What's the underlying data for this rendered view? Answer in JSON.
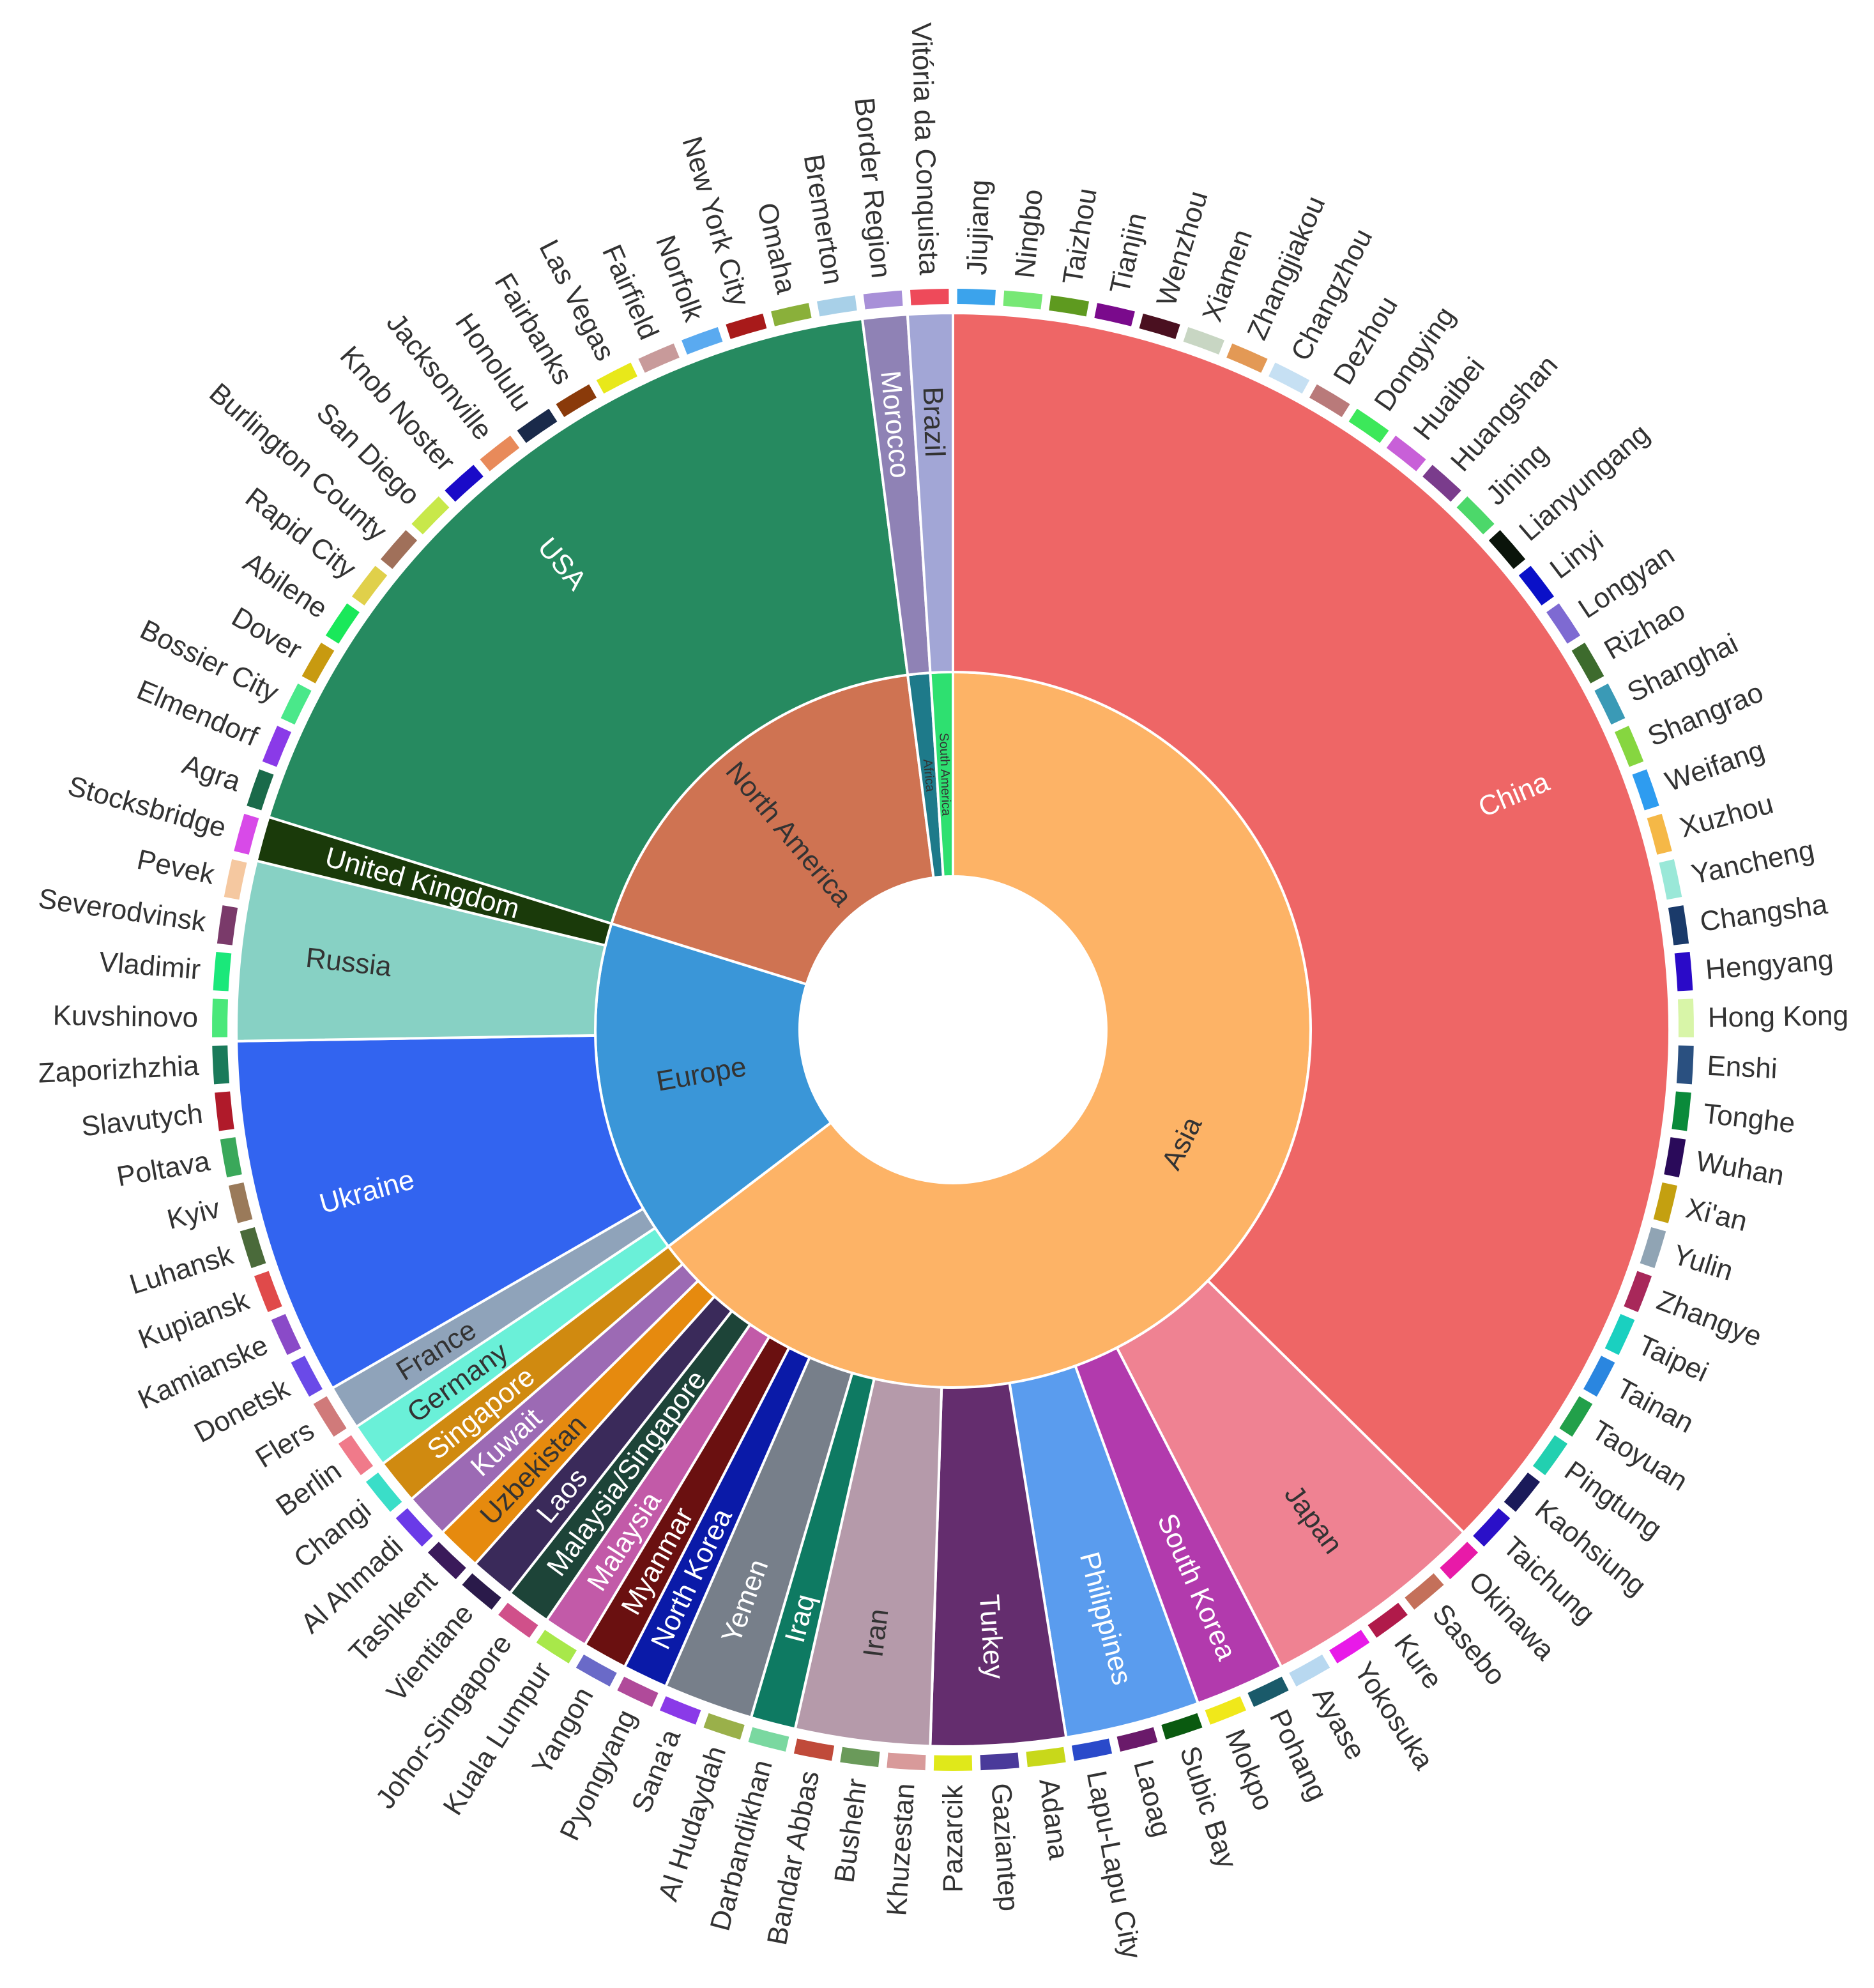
{
  "chart_data": {
    "type": "sunburst",
    "title": "",
    "rings": [
      "continent",
      "country",
      "city"
    ],
    "children": [
      {
        "name": "Asia",
        "color": "#FDB366",
        "children": [
          {
            "name": "China",
            "color": "#EE6666",
            "children": [
              {
                "name": "Jiujiang",
                "color": "#3BA3EC"
              },
              {
                "name": "Ningbo",
                "color": "#77E875"
              },
              {
                "name": "Taizhou",
                "color": "#5E9A1F"
              },
              {
                "name": "Tianjin",
                "color": "#7A0A8C"
              },
              {
                "name": "Wenzhou",
                "color": "#4A1020"
              },
              {
                "name": "Xiamen",
                "color": "#C8D6C3"
              },
              {
                "name": "Zhangjiakou",
                "color": "#E39955"
              },
              {
                "name": "Changzhou",
                "color": "#C6E0F3"
              },
              {
                "name": "Dezhou",
                "color": "#B97A7A"
              },
              {
                "name": "Dongying",
                "color": "#3CE85A"
              },
              {
                "name": "Huaibei",
                "color": "#C860D8"
              },
              {
                "name": "Huangshan",
                "color": "#7A3C8C"
              },
              {
                "name": "Jining",
                "color": "#4CD86A"
              },
              {
                "name": "Lianyungang",
                "color": "#0A140A"
              },
              {
                "name": "Linyi",
                "color": "#0A10C8"
              },
              {
                "name": "Longyan",
                "color": "#7E6AD2"
              },
              {
                "name": "Rizhao",
                "color": "#3D6B2D"
              },
              {
                "name": "Shanghai",
                "color": "#3A9AB6"
              },
              {
                "name": "Shangrao",
                "color": "#86D640"
              },
              {
                "name": "Weifang",
                "color": "#2E9CF0"
              },
              {
                "name": "Xuzhou",
                "color": "#F5B847"
              },
              {
                "name": "Yancheng",
                "color": "#9AE8D8"
              },
              {
                "name": "Changsha",
                "color": "#1A3A6A"
              },
              {
                "name": "Hengyang",
                "color": "#2A0AC8"
              },
              {
                "name": "Hong Kong",
                "color": "#D8F5A8"
              },
              {
                "name": "Enshi",
                "color": "#2A5080"
              },
              {
                "name": "Tonghe",
                "color": "#0A8A3A"
              },
              {
                "name": "Wuhan",
                "color": "#2A0A5A"
              },
              {
                "name": "Xi'an",
                "color": "#C4A010"
              },
              {
                "name": "Yulin",
                "color": "#90A4B4"
              },
              {
                "name": "Zhangye",
                "color": "#A8285A"
              },
              {
                "name": "Taipei",
                "color": "#1AD0C0"
              },
              {
                "name": "Tainan",
                "color": "#2A86E0"
              },
              {
                "name": "Taoyuan",
                "color": "#22A04A"
              },
              {
                "name": "Pingtung",
                "color": "#22D0B0"
              },
              {
                "name": "Kaohsiung",
                "color": "#1A1A5A"
              },
              {
                "name": "Taichung",
                "color": "#2A10C8"
              }
            ]
          },
          {
            "name": "Japan",
            "color": "#EF8292",
            "children": [
              {
                "name": "Okinawa",
                "color": "#E81AA8"
              },
              {
                "name": "Sasebo",
                "color": "#C4705A"
              },
              {
                "name": "Kure",
                "color": "#B01A4A"
              },
              {
                "name": "Yokosuka",
                "color": "#E81AE8"
              },
              {
                "name": "Ayase",
                "color": "#B8D8F0"
              }
            ]
          },
          {
            "name": "South Korea",
            "color": "#B23AAD",
            "children": [
              {
                "name": "Pohang",
                "color": "#1A5A6A"
              },
              {
                "name": "Mokpo",
                "color": "#F0E81A"
              }
            ]
          },
          {
            "name": "Philippines",
            "color": "#5A9CEE",
            "children": [
              {
                "name": "Subic Bay",
                "color": "#0A5A10"
              },
              {
                "name": "Laoag",
                "color": "#6A1A6A"
              },
              {
                "name": "Lapu-Lapu City",
                "color": "#2A4ACA"
              }
            ]
          },
          {
            "name": "Turkey",
            "color": "#642D6E",
            "children": [
              {
                "name": "Adana",
                "color": "#C8D81A"
              },
              {
                "name": "Gaziantep",
                "color": "#4A3A9A"
              },
              {
                "name": "Pazarcik",
                "color": "#E0E81A"
              }
            ]
          },
          {
            "name": "Iran",
            "color": "#B59AAA",
            "children": [
              {
                "name": "Khuzestan",
                "color": "#D89A9A"
              },
              {
                "name": "Bushehr",
                "color": "#6A9A5A"
              },
              {
                "name": "Bandar Abbas",
                "color": "#C04A3A"
              }
            ]
          },
          {
            "name": "Iraq",
            "color": "#0E7A62",
            "children": [
              {
                "name": "Darbandikhan",
                "color": "#7AD8A0"
              }
            ]
          },
          {
            "name": "Yemen",
            "color": "#777F8A",
            "children": [
              {
                "name": "Al Hudaydah",
                "color": "#9AB04A"
              },
              {
                "name": "Sana'a",
                "color": "#8A3AE8"
              }
            ]
          },
          {
            "name": "North Korea",
            "color": "#0A1AA8",
            "children": [
              {
                "name": "Pyongyang",
                "color": "#B04A9A"
              }
            ]
          },
          {
            "name": "Myanmar",
            "color": "#6A1010",
            "children": [
              {
                "name": "Yangon",
                "color": "#6A6AC8"
              }
            ]
          },
          {
            "name": "Malaysia",
            "color": "#C25AA8",
            "children": [
              {
                "name": "Kuala Lumpur",
                "color": "#A8E84A"
              }
            ]
          },
          {
            "name": "Malaysia/Singapore",
            "color": "#1D4438",
            "children": [
              {
                "name": "Johor-Singapore",
                "color": "#D0508A"
              }
            ]
          },
          {
            "name": "Laos",
            "color": "#3A2A5A",
            "children": [
              {
                "name": "Vientiane",
                "color": "#2A1A4A"
              }
            ]
          },
          {
            "name": "Uzbekistan",
            "color": "#E68A0E",
            "children": [
              {
                "name": "Tashkent",
                "color": "#3A1A5A"
              }
            ]
          },
          {
            "name": "Kuwait",
            "color": "#9C6AB4",
            "children": [
              {
                "name": "Al Ahmadi",
                "color": "#6A3AE8"
              }
            ]
          },
          {
            "name": "Singapore",
            "color": "#D08A10",
            "children": [
              {
                "name": "Changi",
                "color": "#3ADEC8"
              }
            ]
          }
        ]
      },
      {
        "name": "Europe",
        "color": "#3A96D8",
        "children": [
          {
            "name": "Germany",
            "color": "#6AF0D8",
            "children": [
              {
                "name": "Berlin",
                "color": "#F07A8A"
              }
            ]
          },
          {
            "name": "France",
            "color": "#8FA3BA",
            "children": [
              {
                "name": "Flers",
                "color": "#D07A7A"
              }
            ]
          },
          {
            "name": "Ukraine",
            "color": "#3264F0",
            "children": [
              {
                "name": "Donetsk",
                "color": "#6A4AE8"
              },
              {
                "name": "Kamianske",
                "color": "#8A4AC8"
              },
              {
                "name": "Kupiansk",
                "color": "#E04A4A"
              },
              {
                "name": "Luhansk",
                "color": "#4A6A3A"
              },
              {
                "name": "Kyiv",
                "color": "#9A7A5A"
              },
              {
                "name": "Poltava",
                "color": "#3AA85A"
              },
              {
                "name": "Slavutych",
                "color": "#B01A2A"
              },
              {
                "name": "Zaporizhzhia",
                "color": "#1A7A5A"
              }
            ]
          },
          {
            "name": "Russia",
            "color": "#87D1C4",
            "children": [
              {
                "name": "Kuvshinovo",
                "color": "#4AE87A"
              },
              {
                "name": "Vladimir",
                "color": "#1AE87A"
              },
              {
                "name": "Severodvinsk",
                "color": "#7A3A6A"
              },
              {
                "name": "Pevek",
                "color": "#F5C8A0"
              }
            ]
          },
          {
            "name": "United Kingdom",
            "color": "#1A3A0A",
            "children": [
              {
                "name": "Stocksbridge",
                "color": "#D84AE8"
              }
            ]
          }
        ]
      },
      {
        "name": "North America",
        "color": "#CF7352",
        "children": [
          {
            "name": "USA",
            "color": "#268A60",
            "children": [
              {
                "name": "Agra",
                "color": "#1A6A4A"
              },
              {
                "name": "Elmendorf",
                "color": "#8A3AE8"
              },
              {
                "name": "Bossier City",
                "color": "#4AE88A"
              },
              {
                "name": "Dover",
                "color": "#C89A10"
              },
              {
                "name": "Abilene",
                "color": "#1AE85A"
              },
              {
                "name": "Rapid City",
                "color": "#E0D04A"
              },
              {
                "name": "Burlington County",
                "color": "#A0705A"
              },
              {
                "name": "San Diego",
                "color": "#C8E84A"
              },
              {
                "name": "Knob Noster",
                "color": "#1A0AC8"
              },
              {
                "name": "Jacksonville",
                "color": "#E88A5A"
              },
              {
                "name": "Honolulu",
                "color": "#1A2A4A"
              },
              {
                "name": "Fairbanks",
                "color": "#8A3A0A"
              },
              {
                "name": "Las Vegas",
                "color": "#E8E81A"
              },
              {
                "name": "Fairfield",
                "color": "#C89A9A"
              },
              {
                "name": "Norfolk",
                "color": "#5AAAF0"
              },
              {
                "name": "New York City",
                "color": "#A81A1A"
              },
              {
                "name": "Omaha",
                "color": "#8AB03A"
              },
              {
                "name": "Bremerton",
                "color": "#A8D0E8"
              }
            ]
          }
        ]
      },
      {
        "name": "Africa",
        "color": "#1E7A8A",
        "children": [
          {
            "name": "Morocco",
            "color": "#8F82B5",
            "children": [
              {
                "name": "Border Region",
                "color": "#A890D8"
              }
            ]
          }
        ]
      },
      {
        "name": "South America",
        "color": "#2EE070",
        "children": [
          {
            "name": "Brazil",
            "color": "#A2A6D6",
            "children": [
              {
                "name": "Vitória da Conquista",
                "color": "#EE4A5A"
              }
            ]
          }
        ]
      }
    ]
  }
}
